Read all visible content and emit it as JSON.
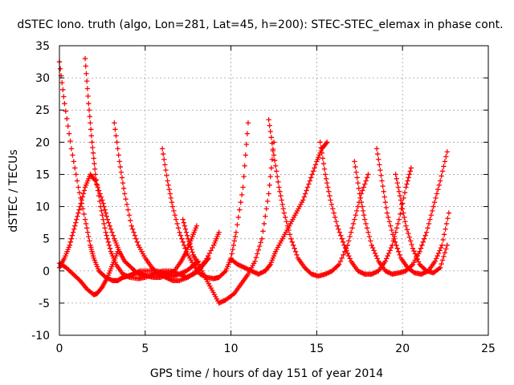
{
  "chart_data": {
    "type": "scatter",
    "title": "dSTEC Iono. truth (algo, Lon=281, Lat=45, h=200): STEC-STEC_elemax in phase cont.",
    "xlabel": "GPS time / hours of day 151 of year 2014",
    "ylabel": "dSTEC  / TECUs",
    "xlim": [
      0,
      25
    ],
    "ylim": [
      -10,
      35
    ],
    "xticks": [
      0,
      5,
      10,
      15,
      20,
      25
    ],
    "yticks": [
      -10,
      -5,
      0,
      5,
      10,
      15,
      20,
      25,
      30,
      35
    ],
    "grid": true,
    "marker": "plus",
    "series_color": "#ff0000",
    "series": [
      {
        "x": [
          0.0,
          0.3,
          0.7,
          1.1,
          1.5,
          1.8,
          2.0,
          2.3,
          2.7,
          3.1,
          3.4,
          3.7,
          4.0,
          4.3,
          4.7,
          5.2,
          5.7,
          6.2,
          6.6,
          7.0,
          7.4,
          7.8,
          8.1
        ],
        "y": [
          32.5,
          26,
          19,
          13,
          8,
          4,
          2,
          0,
          -1,
          -1.5,
          -1.5,
          -1,
          -0.8,
          -0.5,
          0,
          0,
          0,
          -0.5,
          -0.8,
          -0.5,
          0,
          0.8,
          1.5
        ]
      },
      {
        "x": [
          0.0,
          0.3,
          0.6,
          0.9,
          1.2,
          1.5,
          1.8,
          2.1,
          2.5,
          2.8,
          3.2,
          3.5,
          3.8,
          4.2,
          4.5,
          4.8,
          5.1,
          5.5,
          5.9,
          6.3,
          6.7,
          7.1,
          7.4,
          7.7,
          8.0
        ],
        "y": [
          0.5,
          2,
          4,
          7,
          10,
          13,
          15,
          14,
          11,
          8,
          5,
          3,
          1.5,
          0.5,
          -0.3,
          -0.5,
          -0.8,
          -1,
          -1,
          -0.5,
          0,
          1.5,
          3,
          5,
          7
        ]
      },
      {
        "x": [
          0.0,
          0.4,
          0.8,
          1.2,
          1.6,
          2.0,
          2.2,
          2.5,
          2.8,
          3.1,
          3.4
        ],
        "y": [
          1.2,
          0.5,
          -0.5,
          -1.5,
          -2.8,
          -3.7,
          -3.5,
          -2.5,
          -1,
          1,
          3
        ]
      },
      {
        "x": [
          1.5,
          1.7,
          1.9,
          2.1,
          2.4,
          2.7,
          3.0,
          3.3,
          3.7,
          4.1,
          4.6,
          5.0,
          5.5,
          6.0,
          6.5,
          7.0,
          7.4,
          7.8,
          8.1,
          8.4,
          8.7
        ],
        "y": [
          33,
          26,
          20,
          15,
          10,
          6,
          3,
          1,
          -0.5,
          -1,
          -1.2,
          -1,
          -0.5,
          0,
          0,
          -0.5,
          -1,
          -0.5,
          0,
          1,
          2
        ]
      },
      {
        "x": [
          3.2,
          3.5,
          3.8,
          4.2,
          4.6,
          5.0,
          5.4,
          5.8,
          6.2,
          6.6,
          7.0,
          7.5,
          8.0,
          8.5,
          9.0,
          9.3
        ],
        "y": [
          23,
          17,
          12,
          7,
          4,
          2,
          0.5,
          -0.5,
          -1,
          -1.5,
          -1.5,
          -1,
          0,
          1.5,
          4,
          6
        ]
      },
      {
        "x": [
          6.0,
          6.3,
          6.6,
          7.0,
          7.4,
          7.8,
          8.2,
          8.6,
          9.0,
          9.3,
          9.7,
          10.0,
          10.3,
          10.7,
          11.0
        ],
        "y": [
          19,
          14,
          10,
          6,
          3,
          1,
          -0.5,
          -1,
          -1.2,
          -1,
          0,
          2,
          6,
          13,
          23
        ]
      },
      {
        "x": [
          7.2,
          7.5,
          7.8,
          8.1,
          8.5,
          8.9,
          9.3,
          9.7,
          10.2,
          10.6,
          11.0,
          11.4,
          11.8,
          12.2,
          12.5
        ],
        "y": [
          8,
          5,
          2.5,
          1,
          -1,
          -3,
          -5,
          -4.5,
          -3.5,
          -2,
          -0.5,
          1.5,
          5,
          12,
          20
        ]
      },
      {
        "x": [
          10.0,
          10.4,
          10.8,
          11.2,
          11.6,
          12.0,
          12.3,
          12.6,
          13.0,
          13.4,
          13.8,
          14.2,
          14.6,
          15.0,
          15.3,
          15.6
        ],
        "y": [
          1.8,
          1,
          0.5,
          0,
          -0.5,
          0,
          1,
          3,
          5,
          7,
          9,
          11,
          14,
          17,
          19,
          20
        ]
      },
      {
        "x": [
          12.2,
          12.5,
          12.8,
          13.1,
          13.5,
          13.9,
          14.3,
          14.7,
          15.1,
          15.5,
          15.9,
          16.3,
          16.8,
          17.2,
          17.6,
          18.0
        ],
        "y": [
          23.5,
          18,
          13,
          9,
          5,
          2,
          0.5,
          -0.5,
          -0.8,
          -0.5,
          0,
          1,
          4,
          8,
          12,
          15
        ]
      },
      {
        "x": [
          15.2,
          15.5,
          15.8,
          16.2,
          16.6,
          17.0,
          17.4,
          17.8,
          18.2,
          18.6,
          19.0,
          19.4,
          19.8,
          20.2,
          20.5
        ],
        "y": [
          20,
          15,
          11,
          7,
          4,
          1.5,
          0,
          -0.5,
          -0.5,
          0,
          1.5,
          4,
          8,
          13,
          16
        ]
      },
      {
        "x": [
          17.2,
          17.5,
          17.8,
          18.2,
          18.6,
          19.0,
          19.4,
          19.8,
          20.2,
          20.6,
          21.0,
          21.4,
          21.8,
          22.2,
          22.6
        ],
        "y": [
          17,
          12,
          8,
          4,
          1.5,
          0,
          -0.5,
          -0.3,
          0,
          1,
          3,
          6,
          10,
          14,
          18.5
        ]
      },
      {
        "x": [
          18.5,
          18.8,
          19.1,
          19.5,
          19.9,
          20.3,
          20.7,
          21.1,
          21.5,
          21.9,
          22.3,
          22.7
        ],
        "y": [
          19,
          14,
          9,
          5,
          2,
          0.5,
          -0.3,
          -0.5,
          0,
          1.5,
          4,
          9
        ]
      },
      {
        "x": [
          19.6,
          19.9,
          20.2,
          20.6,
          21.0,
          21.4,
          21.8,
          22.2,
          22.6
        ],
        "y": [
          15,
          11,
          7,
          3.5,
          1,
          0,
          -0.3,
          0.5,
          4
        ]
      }
    ]
  }
}
